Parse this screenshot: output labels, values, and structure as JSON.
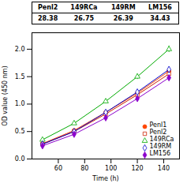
{
  "chart_data": {
    "type": "line",
    "xlabel": "Time (h)",
    "ylabel": "OD value (450 nm)",
    "x": [
      48,
      72,
      96,
      120,
      144
    ],
    "series": [
      {
        "name": "Penl1",
        "color": "#FF4500",
        "marker": "circle",
        "values": [
          0.28,
          0.52,
          0.85,
          1.2,
          1.6
        ],
        "errors": [
          0.015,
          0.02,
          0.025,
          0.03,
          0.04
        ]
      },
      {
        "name": "Penl2",
        "color": "#CC2200",
        "marker": "square-open",
        "values": [
          0.27,
          0.5,
          0.82,
          1.17,
          1.55
        ],
        "errors": [
          0.015,
          0.02,
          0.025,
          0.03,
          0.04
        ]
      },
      {
        "name": "149RCa",
        "color": "#00AA00",
        "marker": "triangle-open",
        "values": [
          0.35,
          0.65,
          1.05,
          1.5,
          2.0
        ],
        "errors": [
          0.02,
          0.03,
          0.04,
          0.05,
          0.06
        ]
      },
      {
        "name": "149RM",
        "color": "#0000CC",
        "marker": "diamond-open",
        "values": [
          0.27,
          0.5,
          0.85,
          1.22,
          1.63
        ],
        "errors": [
          0.015,
          0.02,
          0.03,
          0.04,
          0.05
        ]
      },
      {
        "name": "LM156",
        "color": "#8B00CC",
        "marker": "diamond",
        "values": [
          0.24,
          0.45,
          0.75,
          1.1,
          1.48
        ],
        "errors": [
          0.015,
          0.02,
          0.025,
          0.035,
          0.045
        ]
      }
    ],
    "xlim": [
      40,
      152
    ],
    "ylim": [
      0.0,
      2.3
    ],
    "xticks": [
      60,
      80,
      100,
      120,
      140
    ],
    "yticks": [
      {
        "value": 0,
        "label": "0.0"
      },
      {
        "value": 0.5,
        "label": "0.5"
      },
      {
        "value": 1,
        "label": "1.0"
      },
      {
        "value": 1.5,
        "label": "1.5"
      },
      {
        "value": 2,
        "label": "2.0"
      }
    ],
    "legend": "lower right",
    "table": {
      "columns": [
        "Penl2",
        "149RCa",
        "149RM",
        "LM156"
      ],
      "values": [
        28.38,
        26.75,
        26.39,
        34.43
      ]
    }
  }
}
